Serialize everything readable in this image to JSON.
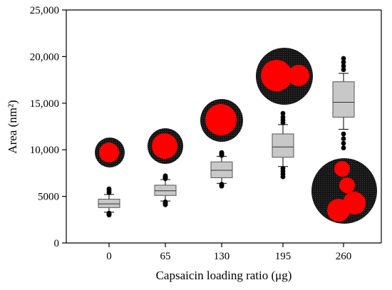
{
  "chart_data": {
    "type": "box",
    "xlabel": "Capsaicin loading ratio (μg)",
    "ylabel": "Area (nm²)",
    "ylim": [
      0,
      25000
    ],
    "yticks": [
      0,
      5000,
      10000,
      15000,
      20000,
      25000
    ],
    "ytick_labels": [
      "0",
      "5000",
      "10,000",
      "15,000",
      "20,000",
      "25,000"
    ],
    "categories": [
      "0",
      "65",
      "130",
      "195",
      "260"
    ],
    "boxes": [
      {
        "category": "0",
        "whisker_low": 3300,
        "q1": 3800,
        "median": 4200,
        "q3": 4700,
        "whisker_high": 5200,
        "outliers_low": [
          3000,
          3100,
          3200
        ],
        "outliers_high": [
          5400,
          5600,
          5800
        ]
      },
      {
        "category": "65",
        "whisker_low": 4500,
        "q1": 5100,
        "median": 5600,
        "q3": 6200,
        "whisker_high": 6800,
        "outliers_low": [
          4100,
          4200,
          4300,
          4400
        ],
        "outliers_high": [
          6900,
          7000,
          7100,
          7200
        ]
      },
      {
        "category": "130",
        "whisker_low": 6400,
        "q1": 7000,
        "median": 7800,
        "q3": 8700,
        "whisker_high": 9300,
        "outliers_low": [
          6100,
          6200,
          6300
        ],
        "outliers_high": [
          9400,
          9500,
          9600,
          9700
        ]
      },
      {
        "category": "195",
        "whisker_low": 8200,
        "q1": 9200,
        "median": 10300,
        "q3": 11700,
        "whisker_high": 12700,
        "outliers_low": [
          7100,
          7400,
          7700,
          8000
        ],
        "outliers_high": [
          12900,
          13200,
          13500,
          13900
        ]
      },
      {
        "category": "260",
        "whisker_low": 12200,
        "q1": 13500,
        "median": 15100,
        "q3": 17300,
        "whisker_high": 18200,
        "outliers_low": [
          10200,
          10700,
          11200,
          11700
        ],
        "outliers_high": [
          18600,
          19000,
          19400,
          19800
        ]
      }
    ],
    "grid": false,
    "colors": {
      "box_fill": "#c8c8c8",
      "box_edge": "#555555",
      "outlier": "#000000",
      "particle_shell": "#1a1a1a",
      "particle_core": "#ff0000"
    }
  },
  "insets": [
    {
      "category": "0",
      "description_icon": "particle-single-core-icon"
    },
    {
      "category": "65",
      "description_icon": "particle-single-core-icon"
    },
    {
      "category": "130",
      "description_icon": "particle-single-core-icon"
    },
    {
      "category": "195",
      "description_icon": "particle-double-core-icon"
    },
    {
      "category": "260",
      "description_icon": "particle-multi-core-icon"
    }
  ]
}
